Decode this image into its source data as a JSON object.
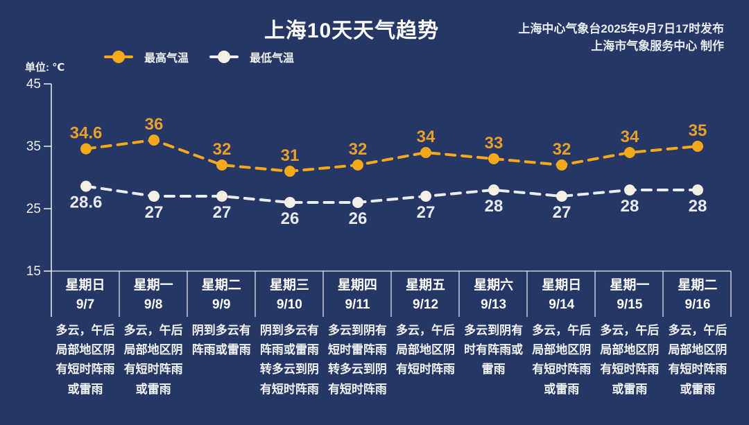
{
  "header": {
    "title": "上海10天天气趋势",
    "publisher_line1": "上海中心气象台2025年9月7日17时发布",
    "publisher_line2": "上海市气象服务中心 制作"
  },
  "axis": {
    "unit_label": "单位: ℃",
    "yticks": [
      45,
      35,
      25,
      15
    ]
  },
  "legend": {
    "items": [
      {
        "label": "最高气温",
        "line_color": "#f4a91c",
        "dot_color": "#f6ab1d"
      },
      {
        "label": "最低气温",
        "line_color": "#eceef3",
        "dot_color": "#f3efe4"
      }
    ]
  },
  "colors": {
    "background": "#263765",
    "axis_line": "#edf0f6",
    "high_series": "#f4a91c",
    "high_label": "#e6a12d",
    "low_series": "#e9ecf2",
    "low_dot": "#f3efe4",
    "low_label": "#e8eaf0"
  },
  "chart_data": {
    "type": "line",
    "title": "上海10天天气趋势",
    "ylabel": "℃",
    "ylim": [
      15,
      45
    ],
    "yticks": [
      45,
      35,
      25,
      15
    ],
    "grid": false,
    "legend_position": "top-left",
    "categories": [
      "星期日 9/7",
      "星期一 9/8",
      "星期二 9/9",
      "星期三 9/10",
      "星期四 9/11",
      "星期五 9/12",
      "星期六 9/13",
      "星期日 9/14",
      "星期一 9/15",
      "星期二 9/16"
    ],
    "series": [
      {
        "name": "最高气温",
        "style": "dashed",
        "color": "#f4a91c",
        "values": [
          34.6,
          36,
          32,
          31,
          32,
          34,
          33,
          32,
          34,
          35
        ]
      },
      {
        "name": "最低气温",
        "style": "dashed",
        "color": "#eceef3",
        "values": [
          28.6,
          27,
          27,
          26,
          26,
          27,
          28,
          27,
          28,
          28
        ]
      }
    ]
  },
  "days": [
    {
      "weekday": "星期日",
      "date": "9/7",
      "forecast": [
        "多云，午后",
        "局部地区阴",
        "有短时阵雨",
        "或雷雨"
      ]
    },
    {
      "weekday": "星期一",
      "date": "9/8",
      "forecast": [
        "多云，午后",
        "局部地区阴",
        "有短时阵雨",
        "或雷雨"
      ]
    },
    {
      "weekday": "星期二",
      "date": "9/9",
      "forecast": [
        "阴到多云有",
        "阵雨或雷雨"
      ]
    },
    {
      "weekday": "星期三",
      "date": "9/10",
      "forecast": [
        "阴到多云有",
        "阵雨或雷雨",
        "转多云到阴",
        "有短时阵雨"
      ]
    },
    {
      "weekday": "星期四",
      "date": "9/11",
      "forecast": [
        "多云到阴有",
        "短时雷阵雨",
        "转多云到阴",
        "有短时阵雨"
      ]
    },
    {
      "weekday": "星期五",
      "date": "9/12",
      "forecast": [
        "多云，午后",
        "局部地区阴",
        "有短时阵雨"
      ]
    },
    {
      "weekday": "星期六",
      "date": "9/13",
      "forecast": [
        "多云到阴有",
        "时有阵雨或",
        "雷雨"
      ]
    },
    {
      "weekday": "星期日",
      "date": "9/14",
      "forecast": [
        "多云，午后",
        "局部地区阴",
        "有短时阵雨",
        "或雷雨"
      ]
    },
    {
      "weekday": "星期一",
      "date": "9/15",
      "forecast": [
        "多云，午后",
        "局部地区阴",
        "有短时阵雨",
        "或雷雨"
      ]
    },
    {
      "weekday": "星期二",
      "date": "9/16",
      "forecast": [
        "多云，午后",
        "局部地区阴",
        "有短时阵雨",
        "或雷雨"
      ]
    }
  ]
}
